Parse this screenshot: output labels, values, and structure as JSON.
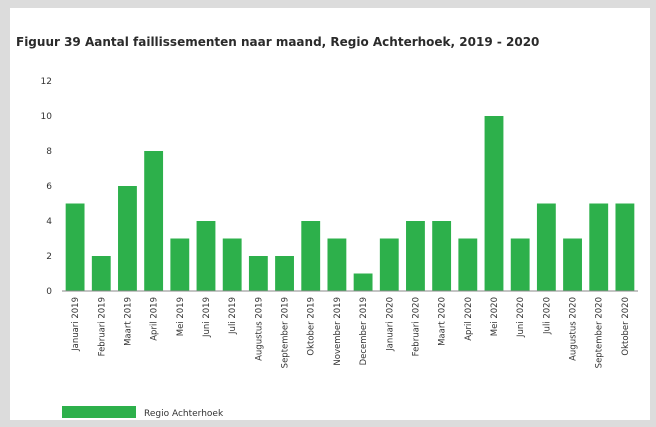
{
  "chart_data": {
    "type": "bar",
    "title": "Figuur 39 Aantal faillissementen naar maand, Regio Achterhoek, 2019 - 2020",
    "xlabel": "",
    "ylabel": "",
    "ylim": [
      0,
      12
    ],
    "yticks": [
      0,
      2,
      4,
      6,
      8,
      10,
      12
    ],
    "grid": false,
    "legend_position": "bottom-left",
    "categories": [
      "Januari 2019",
      "Februari 2019",
      "Maart 2019",
      "April 2019",
      "Mei 2019",
      "Juni 2019",
      "Juli 2019",
      "Augustus 2019",
      "September 2019",
      "Oktober 2019",
      "November 2019",
      "December 2019",
      "Januari 2020",
      "Februari 2020",
      "Maart 2020",
      "April 2020",
      "Mei 2020",
      "Juni 2020",
      "Juli 2020",
      "Augustus 2020",
      "September 2020",
      "Oktober 2020"
    ],
    "series": [
      {
        "name": "Regio Achterhoek",
        "color": "#2db04b",
        "values": [
          5,
          2,
          6,
          8,
          3,
          4,
          3,
          2,
          2,
          4,
          3,
          1,
          3,
          4,
          4,
          3,
          10,
          3,
          5,
          3,
          5,
          5
        ]
      }
    ]
  }
}
